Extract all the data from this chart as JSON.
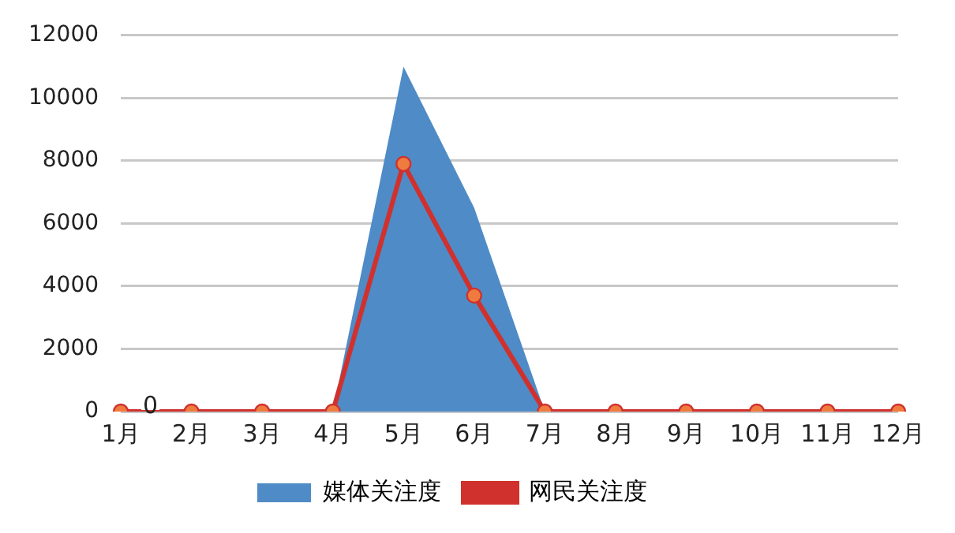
{
  "chart_data": {
    "type": "area",
    "categories": [
      "1月",
      "2月",
      "3月",
      "4月",
      "5月",
      "6月",
      "7月",
      "8月",
      "9月",
      "10月",
      "11月",
      "12月"
    ],
    "series": [
      {
        "name": "媒体关注度",
        "type": "area",
        "color": "#4f8bc6",
        "values": [
          0,
          0,
          0,
          0,
          11000,
          6500,
          0,
          0,
          0,
          0,
          0,
          0
        ]
      },
      {
        "name": "网民关注度",
        "type": "line",
        "color": "#d0312d",
        "marker": "circle",
        "values": [
          0,
          0,
          0,
          0,
          7900,
          3700,
          0,
          0,
          0,
          0,
          0,
          0
        ]
      }
    ],
    "ylim": [
      0,
      12000
    ],
    "yticks": [
      0,
      2000,
      4000,
      6000,
      8000,
      10000,
      12000
    ],
    "grid": "y",
    "legend": "bottom",
    "annotations": [
      {
        "text": "0",
        "x": "1月",
        "y": 0
      }
    ]
  }
}
